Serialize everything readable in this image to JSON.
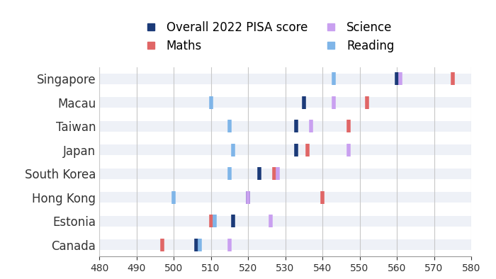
{
  "chart_data": {
    "type": "scatter",
    "categories": [
      "Singapore",
      "Macau",
      "Taiwan",
      "Japan",
      "South Korea",
      "Hong Kong",
      "Estonia",
      "Canada"
    ],
    "series": [
      {
        "name": "Overall 2022 PISA score",
        "color": "#1b3a78",
        "values": [
          560,
          535,
          533,
          533,
          523,
          520,
          516,
          506
        ]
      },
      {
        "name": "Maths",
        "color": "#e06666",
        "values": [
          575,
          552,
          547,
          536,
          527,
          540,
          510,
          497
        ]
      },
      {
        "name": "Science",
        "color": "#c9a0f0",
        "values": [
          561,
          543,
          537,
          547,
          528,
          520,
          526,
          515
        ]
      },
      {
        "name": "Reading",
        "color": "#7fb5e8",
        "values": [
          543,
          510,
          515,
          516,
          515,
          500,
          511,
          507
        ]
      }
    ],
    "marker": "vline",
    "xlim": [
      480,
      580
    ],
    "xticks": [
      480,
      490,
      500,
      510,
      520,
      530,
      540,
      550,
      560,
      570,
      580
    ],
    "grid": true,
    "legend": "top"
  }
}
